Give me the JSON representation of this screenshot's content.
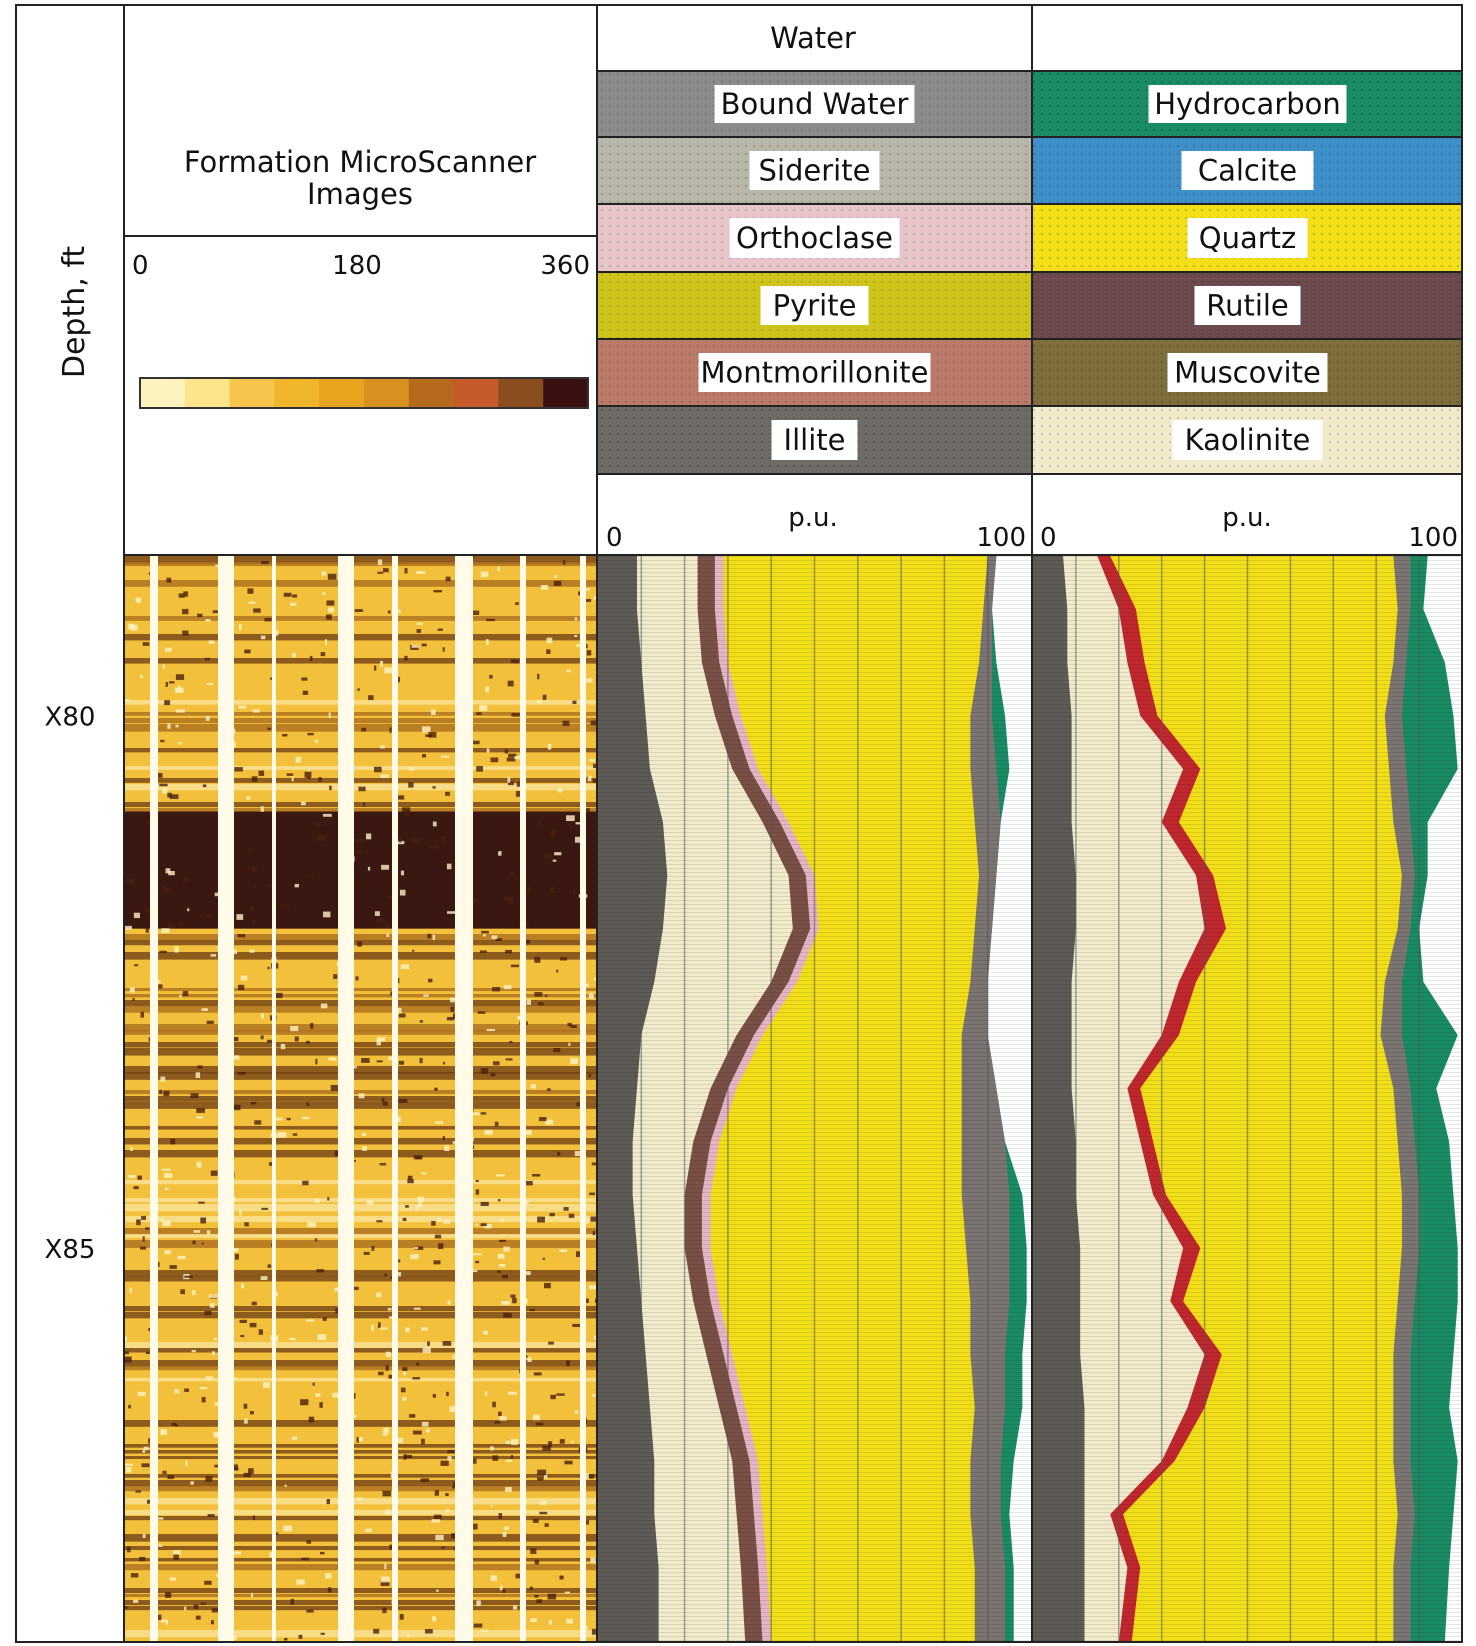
{
  "depth_track": {
    "label": "Depth, ft",
    "ticks": [
      {
        "label": "X80",
        "depth": 80
      },
      {
        "label": "X85",
        "depth": 85
      }
    ],
    "range": [
      78.5,
      88.7
    ]
  },
  "fms": {
    "title_line1": "Formation MicroScanner",
    "title_line2": "Images",
    "scale_min": "0",
    "scale_mid": "180",
    "scale_max": "360",
    "colorbar": [
      "#fdf3bf",
      "#fbe48a",
      "#f6c34b",
      "#f0b52b",
      "#e8a31f",
      "#d8901e",
      "#b66b1c",
      "#c65a2a",
      "#8a4d1e",
      "#3a1010"
    ]
  },
  "legend": {
    "water_label": "Water",
    "left_column": [
      {
        "name": "Bound Water",
        "color": "#8c8c8a"
      },
      {
        "name": "Siderite",
        "color": "#b9b6aa"
      },
      {
        "name": "Orthoclase",
        "color": "#e6c4c8"
      },
      {
        "name": "Pyrite",
        "color": "#cfc41a"
      },
      {
        "name": "Montmorillonite",
        "color": "#b97a6a"
      },
      {
        "name": "Illite",
        "color": "#6e6a66"
      }
    ],
    "right_column": [
      {
        "name": "Hydrocarbon",
        "color": "#1a8c63"
      },
      {
        "name": "Calcite",
        "color": "#3f8fc9"
      },
      {
        "name": "Quartz",
        "color": "#f2df19"
      },
      {
        "name": "Rutile",
        "color": "#6a4a4c"
      },
      {
        "name": "Muscovite",
        "color": "#7d6e3c"
      },
      {
        "name": "Kaolinite",
        "color": "#f1ebcc"
      }
    ]
  },
  "mineral_tracks": {
    "unit": "p.u.",
    "min": "0",
    "max": "100"
  },
  "chart_data": [
    {
      "type": "area",
      "depth": [
        78.5,
        79.0,
        79.5,
        80.0,
        80.5,
        81.0,
        81.5,
        82.0,
        82.5,
        83.0,
        83.5,
        84.0,
        84.5,
        85.0,
        85.5,
        86.0,
        86.5,
        87.0,
        87.5,
        88.0,
        88.7
      ],
      "series": [
        {
          "color": "#5e5a56",
          "values": [
            9,
            9,
            10,
            11,
            12,
            15,
            16,
            15,
            13,
            10,
            9,
            8,
            8,
            9,
            10,
            11,
            12,
            13,
            13,
            14,
            14
          ]
        },
        {
          "color": "#f1ebcc",
          "values": [
            23,
            23,
            24,
            27,
            31,
            38,
            44,
            45,
            40,
            32,
            26,
            22,
            20,
            20,
            22,
            25,
            28,
            31,
            32,
            33,
            34
          ]
        },
        {
          "color": "#7a5046",
          "values": [
            27,
            27,
            28,
            31,
            35,
            42,
            48,
            49,
            44,
            36,
            30,
            26,
            24,
            24,
            26,
            29,
            32,
            35,
            36,
            37,
            38
          ]
        },
        {
          "color": "#e6b4c4",
          "values": [
            29,
            29,
            30,
            33,
            37,
            44,
            50,
            51,
            46,
            38,
            32,
            28,
            26,
            26,
            28,
            31,
            34,
            37,
            38,
            39,
            40
          ]
        },
        {
          "color": "#f2df19",
          "values": [
            90,
            89,
            88,
            86,
            86,
            87,
            88,
            87,
            86,
            84,
            84,
            84,
            84,
            85,
            86,
            86,
            87,
            86,
            86,
            87,
            87
          ]
        },
        {
          "color": "#7a7472",
          "values": [
            92,
            91,
            91,
            91,
            92,
            93,
            92,
            91,
            90,
            90,
            92,
            94,
            95,
            95,
            95,
            94,
            94,
            93,
            93,
            94,
            94
          ]
        },
        {
          "color": "#1a8c63",
          "values": [
            92,
            91,
            92,
            94,
            95,
            93,
            92,
            91,
            90,
            90,
            92,
            94,
            98,
            99,
            99,
            98,
            98,
            96,
            95,
            96,
            96
          ]
        }
      ]
    },
    {
      "type": "area",
      "depth": [
        78.5,
        79.0,
        79.5,
        80.0,
        80.5,
        81.0,
        81.5,
        82.0,
        82.5,
        83.0,
        83.5,
        84.0,
        84.5,
        85.0,
        85.5,
        86.0,
        86.5,
        87.0,
        87.5,
        88.0,
        88.7
      ],
      "series": [
        {
          "color": "#5e5a56",
          "values": [
            7,
            8,
            8,
            9,
            9,
            9,
            10,
            10,
            9,
            9,
            9,
            10,
            10,
            11,
            11,
            11,
            12,
            12,
            12,
            12,
            12
          ]
        },
        {
          "color": "#f1ebcc",
          "values": [
            15,
            20,
            22,
            25,
            35,
            30,
            38,
            40,
            34,
            30,
            22,
            25,
            28,
            35,
            32,
            40,
            36,
            30,
            18,
            22,
            20
          ]
        },
        {
          "color": "#c0282e",
          "values": [
            18,
            24,
            26,
            29,
            39,
            34,
            42,
            45,
            38,
            34,
            25,
            28,
            31,
            39,
            35,
            44,
            40,
            33,
            21,
            25,
            23
          ]
        },
        {
          "color": "#f2df19",
          "values": [
            84,
            85,
            84,
            82,
            83,
            84,
            86,
            85,
            82,
            81,
            84,
            85,
            86,
            86,
            85,
            84,
            84,
            84,
            85,
            84,
            84
          ]
        },
        {
          "color": "#7a7472",
          "values": [
            88,
            88,
            87,
            86,
            87,
            88,
            89,
            88,
            86,
            86,
            88,
            89,
            90,
            90,
            89,
            88,
            88,
            88,
            89,
            88,
            88
          ]
        },
        {
          "color": "#1a8c63",
          "values": [
            92,
            91,
            96,
            98,
            99,
            92,
            92,
            90,
            91,
            99,
            94,
            97,
            98,
            99,
            99,
            98,
            97,
            99,
            98,
            97,
            96
          ]
        }
      ]
    }
  ]
}
